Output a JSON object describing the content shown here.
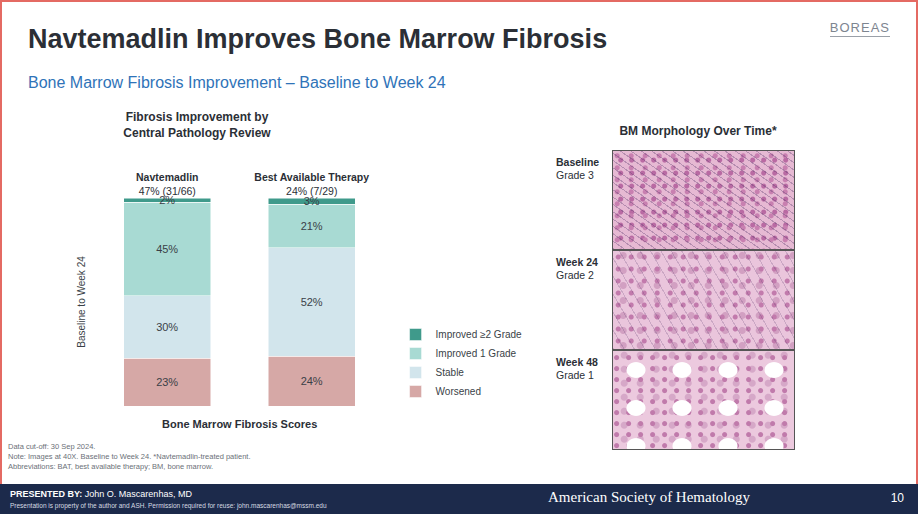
{
  "slide": {
    "title": "Navtemadlin Improves Bone Marrow Fibrosis",
    "subtitle": "Bone Marrow Fibrosis Improvement – Baseline to Week 24",
    "logo": "BOREAS"
  },
  "chart_data": {
    "type": "bar",
    "title": "Fibrosis Improvement by Central Pathology Review",
    "categories": [
      "Navtemadlin",
      "Best Available Therapy"
    ],
    "annotations": [
      "47% (31/66)",
      "24% (7/29)"
    ],
    "xlabel": "Bone Marrow Fibrosis Scores",
    "ylabel": "Baseline to Week 24",
    "ylim": [
      0,
      100
    ],
    "stacked": true,
    "data_labels": true,
    "tick_labels": "x",
    "legend": "right",
    "series": [
      {
        "name": "Worsened",
        "color": "#d6a8a6",
        "values": [
          23,
          24
        ],
        "value_labels": [
          "23%",
          "24%"
        ]
      },
      {
        "name": "Stable",
        "color": "#d2e5ec",
        "values": [
          30,
          52
        ],
        "value_labels": [
          "30%",
          "52%"
        ]
      },
      {
        "name": "Improved 1 Grade",
        "color": "#a8dad3",
        "values": [
          45,
          21
        ],
        "value_labels": [
          "45%",
          "21%"
        ]
      },
      {
        "name": "Improved ≥2 Grade",
        "color": "#3f9a8b",
        "values": [
          2,
          3
        ],
        "value_labels": [
          "2%",
          "3%"
        ]
      }
    ]
  },
  "morphology": {
    "title": "BM Morphology Over Time*",
    "panels": [
      {
        "time": "Baseline",
        "grade": "Grade 3"
      },
      {
        "time": "Week 24",
        "grade": "Grade 2"
      },
      {
        "time": "Week 48",
        "grade": "Grade 1"
      }
    ]
  },
  "notes": [
    "Data cut-off: 30 Sep 2024.",
    "Note: Images at 40X. Baseline to Week 24. *Navtemadlin-treated patient.",
    "Abbreviations: BAT, best available therapy; BM, bone marrow."
  ],
  "footer": {
    "presenter_label": "PRESENTED BY:",
    "presenter": "John O. Mascarenhas, MD",
    "rights": "Presentation is property of the author and ASH. Permission required for reuse: john.mascarenhas@mssm.edu",
    "society": "American Society of Hematology",
    "page": "10"
  }
}
